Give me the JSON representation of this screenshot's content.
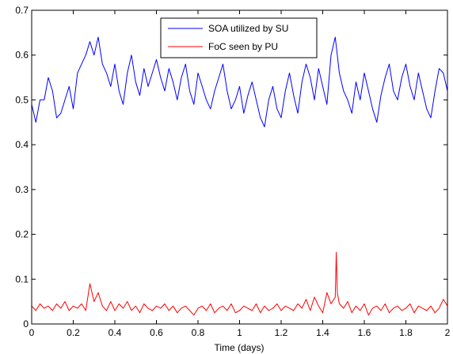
{
  "chart_data": {
    "type": "line",
    "title": "",
    "xlabel": "Time (days)",
    "ylabel": "",
    "xlim": [
      0,
      2
    ],
    "ylim": [
      0,
      0.7
    ],
    "x_ticks": [
      "0",
      "0.2",
      "0.4",
      "0.6",
      "0.8",
      "1",
      "1.2",
      "1.4",
      "1.6",
      "1.8",
      "2"
    ],
    "y_ticks": [
      "0",
      "0.1",
      "0.2",
      "0.3",
      "0.4",
      "0.5",
      "0.6",
      "0.7"
    ],
    "grid": false,
    "legend_position": "top-center",
    "series": [
      {
        "name": "SOA utilized by SU",
        "color": "#0000ff",
        "x": [
          0,
          0.02,
          0.04,
          0.06,
          0.08,
          0.1,
          0.12,
          0.14,
          0.16,
          0.18,
          0.2,
          0.22,
          0.24,
          0.26,
          0.28,
          0.3,
          0.32,
          0.34,
          0.36,
          0.38,
          0.4,
          0.42,
          0.44,
          0.46,
          0.48,
          0.5,
          0.52,
          0.54,
          0.56,
          0.58,
          0.6,
          0.62,
          0.64,
          0.66,
          0.68,
          0.7,
          0.72,
          0.74,
          0.76,
          0.78,
          0.8,
          0.82,
          0.84,
          0.86,
          0.88,
          0.9,
          0.92,
          0.94,
          0.96,
          0.98,
          1.0,
          1.02,
          1.04,
          1.06,
          1.08,
          1.1,
          1.12,
          1.14,
          1.16,
          1.18,
          1.2,
          1.22,
          1.24,
          1.26,
          1.28,
          1.3,
          1.32,
          1.34,
          1.36,
          1.38,
          1.4,
          1.42,
          1.44,
          1.46,
          1.48,
          1.5,
          1.52,
          1.54,
          1.56,
          1.58,
          1.6,
          1.62,
          1.64,
          1.66,
          1.68,
          1.7,
          1.72,
          1.74,
          1.76,
          1.78,
          1.8,
          1.82,
          1.84,
          1.86,
          1.88,
          1.9,
          1.92,
          1.94,
          1.96,
          1.98,
          2.0
        ],
        "values": [
          0.49,
          0.45,
          0.5,
          0.5,
          0.55,
          0.52,
          0.46,
          0.47,
          0.5,
          0.53,
          0.48,
          0.56,
          0.58,
          0.6,
          0.63,
          0.6,
          0.64,
          0.58,
          0.56,
          0.53,
          0.58,
          0.52,
          0.49,
          0.56,
          0.6,
          0.54,
          0.51,
          0.57,
          0.53,
          0.56,
          0.59,
          0.55,
          0.52,
          0.57,
          0.54,
          0.5,
          0.55,
          0.58,
          0.52,
          0.49,
          0.56,
          0.53,
          0.5,
          0.48,
          0.52,
          0.55,
          0.58,
          0.52,
          0.48,
          0.5,
          0.53,
          0.47,
          0.51,
          0.54,
          0.5,
          0.46,
          0.44,
          0.5,
          0.53,
          0.48,
          0.46,
          0.52,
          0.56,
          0.51,
          0.47,
          0.54,
          0.58,
          0.55,
          0.5,
          0.57,
          0.53,
          0.49,
          0.6,
          0.64,
          0.56,
          0.52,
          0.5,
          0.47,
          0.54,
          0.5,
          0.56,
          0.52,
          0.48,
          0.45,
          0.51,
          0.55,
          0.58,
          0.52,
          0.5,
          0.55,
          0.58,
          0.53,
          0.5,
          0.56,
          0.52,
          0.48,
          0.46,
          0.52,
          0.57,
          0.56,
          0.52
        ]
      },
      {
        "name": "FoC seen by PU",
        "color": "#ff0000",
        "x": [
          0,
          0.02,
          0.04,
          0.06,
          0.08,
          0.1,
          0.12,
          0.14,
          0.16,
          0.18,
          0.2,
          0.22,
          0.24,
          0.26,
          0.28,
          0.3,
          0.32,
          0.34,
          0.36,
          0.38,
          0.4,
          0.42,
          0.44,
          0.46,
          0.48,
          0.5,
          0.52,
          0.54,
          0.56,
          0.58,
          0.6,
          0.62,
          0.64,
          0.66,
          0.68,
          0.7,
          0.72,
          0.74,
          0.76,
          0.78,
          0.8,
          0.82,
          0.84,
          0.86,
          0.88,
          0.9,
          0.92,
          0.94,
          0.96,
          0.98,
          1.0,
          1.02,
          1.04,
          1.06,
          1.08,
          1.1,
          1.12,
          1.14,
          1.16,
          1.18,
          1.2,
          1.22,
          1.24,
          1.26,
          1.28,
          1.3,
          1.32,
          1.34,
          1.36,
          1.38,
          1.4,
          1.42,
          1.44,
          1.46,
          1.465,
          1.47,
          1.48,
          1.5,
          1.52,
          1.54,
          1.56,
          1.58,
          1.6,
          1.62,
          1.64,
          1.66,
          1.68,
          1.7,
          1.72,
          1.74,
          1.76,
          1.78,
          1.8,
          1.82,
          1.84,
          1.86,
          1.88,
          1.9,
          1.92,
          1.94,
          1.96,
          1.98,
          2.0
        ],
        "values": [
          0.04,
          0.03,
          0.045,
          0.035,
          0.04,
          0.03,
          0.045,
          0.035,
          0.05,
          0.03,
          0.04,
          0.035,
          0.045,
          0.03,
          0.09,
          0.05,
          0.07,
          0.04,
          0.03,
          0.05,
          0.03,
          0.045,
          0.035,
          0.05,
          0.03,
          0.04,
          0.025,
          0.045,
          0.035,
          0.03,
          0.04,
          0.035,
          0.045,
          0.03,
          0.04,
          0.025,
          0.035,
          0.04,
          0.03,
          0.02,
          0.035,
          0.04,
          0.03,
          0.045,
          0.025,
          0.035,
          0.04,
          0.03,
          0.045,
          0.025,
          0.03,
          0.04,
          0.035,
          0.03,
          0.045,
          0.025,
          0.04,
          0.03,
          0.035,
          0.045,
          0.03,
          0.04,
          0.035,
          0.03,
          0.045,
          0.035,
          0.055,
          0.03,
          0.06,
          0.04,
          0.025,
          0.07,
          0.045,
          0.06,
          0.16,
          0.07,
          0.045,
          0.035,
          0.05,
          0.025,
          0.04,
          0.03,
          0.045,
          0.02,
          0.035,
          0.04,
          0.03,
          0.045,
          0.025,
          0.035,
          0.04,
          0.03,
          0.035,
          0.045,
          0.025,
          0.04,
          0.035,
          0.03,
          0.04,
          0.025,
          0.035,
          0.055,
          0.04
        ]
      }
    ]
  }
}
